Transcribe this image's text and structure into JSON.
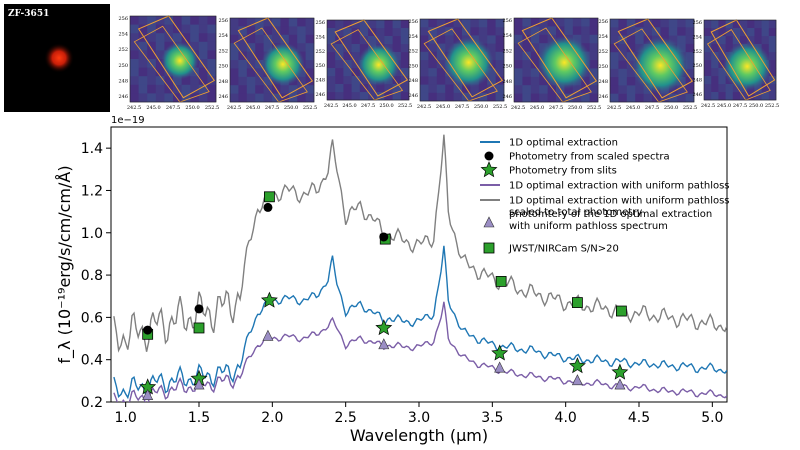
{
  "thumbnails": {
    "source_label": "ZF-3651",
    "y_ticks": [
      "256",
      "254",
      "252",
      "250",
      "248",
      "246"
    ],
    "x_ticks": [
      "242.5",
      "245.0",
      "247.5",
      "250.0",
      "252.5"
    ],
    "count": 7
  },
  "chart_data": {
    "type": "line",
    "xlabel": "Wavelength (μm)",
    "ylabel": "f_λ (10⁻¹⁹erg/s/cm/cm/Å)",
    "offset_text": "1e−19",
    "xlim": [
      0.9,
      5.1
    ],
    "ylim": [
      0.2,
      1.5
    ],
    "xticks": [
      1.0,
      1.5,
      2.0,
      2.5,
      3.0,
      3.5,
      4.0,
      4.5,
      5.0
    ],
    "yticks": [
      0.2,
      0.4,
      0.6,
      0.8,
      1.0,
      1.2,
      1.4
    ],
    "xtick_labels": [
      "1.0",
      "1.5",
      "2.0",
      "2.5",
      "3.0",
      "3.5",
      "4.0",
      "4.5",
      "5.0"
    ],
    "ytick_labels": [
      "0.2",
      "0.4",
      "0.6",
      "0.8",
      "1.0",
      "1.2",
      "1.4"
    ],
    "series": [
      {
        "name": "1D optimal extraction with uniform pathloss scaled to total photometry",
        "color": "#808080",
        "x": [
          0.92,
          1.0,
          1.1,
          1.2,
          1.3,
          1.4,
          1.5,
          1.6,
          1.7,
          1.78,
          1.84,
          1.9,
          1.96,
          2.0,
          2.1,
          2.2,
          2.3,
          2.38,
          2.41,
          2.44,
          2.5,
          2.6,
          2.7,
          2.76,
          2.8,
          2.9,
          3.0,
          3.1,
          3.15,
          3.17,
          3.2,
          3.3,
          3.4,
          3.5,
          3.6,
          3.7,
          3.8,
          3.9,
          4.0,
          4.1,
          4.2,
          4.3,
          4.4,
          4.5,
          4.6,
          4.7,
          4.8,
          4.9,
          5.0,
          5.1
        ],
        "y": [
          0.5,
          0.52,
          0.53,
          0.56,
          0.58,
          0.6,
          0.62,
          0.63,
          0.66,
          0.7,
          0.95,
          1.12,
          1.14,
          1.18,
          1.2,
          1.18,
          1.2,
          1.3,
          1.4,
          1.3,
          1.08,
          1.12,
          1.06,
          0.98,
          1.0,
          0.96,
          0.94,
          0.98,
          1.3,
          1.43,
          1.1,
          0.86,
          0.82,
          0.78,
          0.76,
          0.73,
          0.71,
          0.69,
          0.67,
          0.66,
          0.65,
          0.64,
          0.62,
          0.62,
          0.61,
          0.6,
          0.59,
          0.58,
          0.57,
          0.56
        ]
      },
      {
        "name": "1D optimal extraction",
        "color": "#1f77b4",
        "x": [
          0.92,
          1.0,
          1.1,
          1.2,
          1.3,
          1.4,
          1.5,
          1.6,
          1.7,
          1.78,
          1.84,
          1.9,
          1.96,
          2.0,
          2.1,
          2.2,
          2.3,
          2.38,
          2.41,
          2.44,
          2.5,
          2.6,
          2.7,
          2.76,
          2.8,
          2.9,
          3.0,
          3.1,
          3.15,
          3.17,
          3.2,
          3.3,
          3.4,
          3.5,
          3.6,
          3.7,
          3.8,
          3.9,
          4.0,
          4.1,
          4.2,
          4.3,
          4.4,
          4.5,
          4.6,
          4.7,
          4.8,
          4.9,
          5.0,
          5.1
        ],
        "y": [
          0.26,
          0.26,
          0.27,
          0.29,
          0.3,
          0.31,
          0.32,
          0.33,
          0.34,
          0.37,
          0.52,
          0.62,
          0.66,
          0.68,
          0.69,
          0.68,
          0.7,
          0.78,
          0.87,
          0.76,
          0.63,
          0.66,
          0.62,
          0.58,
          0.6,
          0.58,
          0.58,
          0.62,
          0.82,
          0.92,
          0.68,
          0.53,
          0.5,
          0.47,
          0.46,
          0.45,
          0.44,
          0.42,
          0.41,
          0.4,
          0.4,
          0.39,
          0.39,
          0.38,
          0.38,
          0.37,
          0.37,
          0.36,
          0.36,
          0.35
        ]
      },
      {
        "name": "1D optimal extraction with uniform pathloss",
        "color": "#7b5ea7",
        "x": [
          0.92,
          1.0,
          1.1,
          1.2,
          1.3,
          1.4,
          1.5,
          1.6,
          1.7,
          1.78,
          1.84,
          1.9,
          1.96,
          2.0,
          2.1,
          2.2,
          2.3,
          2.38,
          2.41,
          2.44,
          2.5,
          2.6,
          2.7,
          2.76,
          2.8,
          2.9,
          3.0,
          3.1,
          3.15,
          3.17,
          3.2,
          3.3,
          3.4,
          3.5,
          3.6,
          3.7,
          3.8,
          3.9,
          4.0,
          4.1,
          4.2,
          4.3,
          4.4,
          4.5,
          4.6,
          4.7,
          4.8,
          4.9,
          5.0,
          5.1
        ],
        "y": [
          0.2,
          0.21,
          0.22,
          0.24,
          0.26,
          0.27,
          0.28,
          0.29,
          0.3,
          0.32,
          0.41,
          0.47,
          0.49,
          0.5,
          0.51,
          0.5,
          0.52,
          0.56,
          0.58,
          0.55,
          0.47,
          0.5,
          0.48,
          0.46,
          0.47,
          0.46,
          0.46,
          0.49,
          0.6,
          0.66,
          0.5,
          0.41,
          0.38,
          0.36,
          0.34,
          0.33,
          0.32,
          0.31,
          0.3,
          0.29,
          0.29,
          0.28,
          0.27,
          0.27,
          0.26,
          0.25,
          0.25,
          0.24,
          0.24,
          0.23
        ]
      }
    ],
    "markers": {
      "photometry_scaled_spectra": {
        "name": "Photometry from scaled spectra",
        "color": "#000000",
        "x": [
          1.15,
          1.5,
          1.97,
          2.76
        ],
        "y": [
          0.54,
          0.64,
          1.12,
          0.98
        ]
      },
      "photometry_slits": {
        "name": "Photometry from slits",
        "color": "#2ca02c",
        "x": [
          1.15,
          1.5,
          1.98,
          2.76,
          3.55,
          4.08,
          4.37
        ],
        "y": [
          0.27,
          0.31,
          0.68,
          0.55,
          0.43,
          0.37,
          0.34
        ]
      },
      "photometry_uniform_pathloss": {
        "name": "photomtery of the 1D optimal extraction\n with uniform pathloss spectrum",
        "color": "#9b8ec4",
        "x": [
          1.15,
          1.5,
          1.97,
          2.76,
          3.55,
          4.08,
          4.37
        ],
        "y": [
          0.23,
          0.28,
          0.51,
          0.47,
          0.36,
          0.3,
          0.28
        ]
      },
      "nircam": {
        "name": "JWST/NIRCam S/N>20",
        "color": "#2ca02c",
        "x": [
          1.15,
          1.5,
          1.98,
          2.77,
          3.56,
          4.08,
          4.38
        ],
        "y": [
          0.52,
          0.55,
          1.17,
          0.97,
          0.77,
          0.67,
          0.63
        ]
      }
    },
    "legend": {
      "placement": "top-right",
      "entries": [
        "1D optimal extraction",
        "Photometry from scaled spectra",
        "Photometry from slits",
        "1D optimal extraction with uniform pathloss",
        "1D optimal extraction with uniform pathloss",
        "scaled to total photometry",
        "photomtery of the 1D optimal extraction",
        " with uniform pathloss spectrum",
        "JWST/NIRCam S/N>20"
      ]
    }
  }
}
